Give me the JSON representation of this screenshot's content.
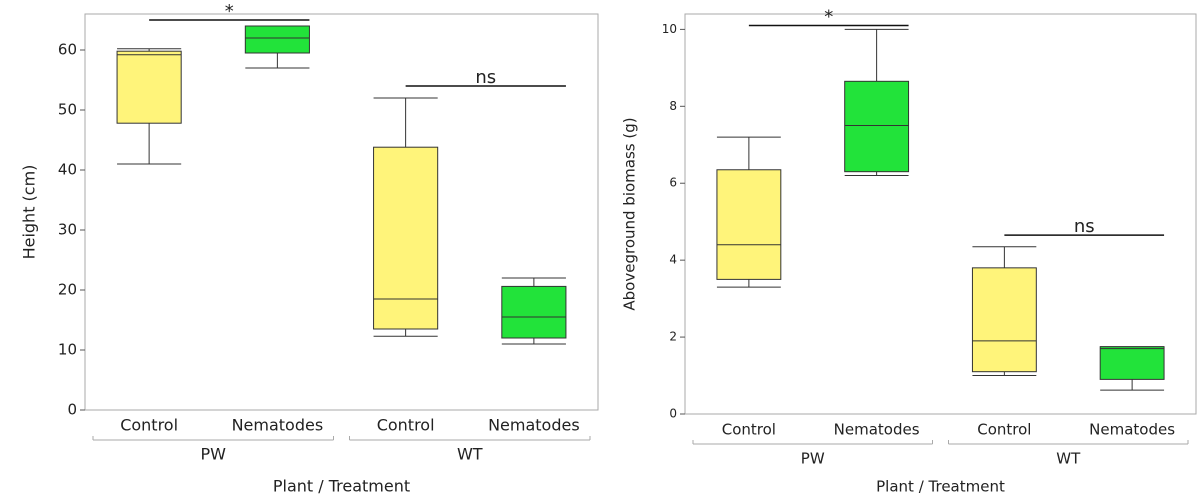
{
  "chart_data": [
    {
      "type": "box",
      "y_label": "Height (cm)",
      "x_label": "Plant / Treatment",
      "ylim": [
        0,
        66
      ],
      "yticks": [
        0,
        10,
        20,
        30,
        40,
        50,
        60
      ],
      "groups": [
        {
          "name": "PW",
          "annotation": {
            "label": "*",
            "y": 65
          },
          "boxes": [
            {
              "name": "Control",
              "color": "#fff47a",
              "min": 41,
              "q1": 47.8,
              "median": 59.2,
              "q3": 59.8,
              "max": 60.2
            },
            {
              "name": "Nematodes",
              "color": "#22e33a",
              "min": 57,
              "q1": 59.5,
              "median": 62,
              "q3": 64,
              "max": 64
            }
          ]
        },
        {
          "name": "WT",
          "annotation": {
            "label": "ns",
            "y": 54
          },
          "boxes": [
            {
              "name": "Control",
              "color": "#fff47a",
              "min": 12.3,
              "q1": 13.5,
              "median": 18.5,
              "q3": 43.8,
              "max": 52
            },
            {
              "name": "Nematodes",
              "color": "#22e33a",
              "min": 11,
              "q1": 12,
              "median": 15.5,
              "q3": 20.6,
              "max": 22
            }
          ]
        }
      ]
    },
    {
      "type": "box",
      "y_label": "Aboveground biomass (g)",
      "x_label": "Plant / Treatment",
      "ylim": [
        0,
        10.4
      ],
      "yticks": [
        0,
        2,
        4,
        6,
        8,
        10
      ],
      "groups": [
        {
          "name": "PW",
          "annotation": {
            "label": "*",
            "y": 10.1
          },
          "boxes": [
            {
              "name": "Control",
              "color": "#fff47a",
              "min": 3.3,
              "q1": 3.5,
              "median": 4.4,
              "q3": 6.35,
              "max": 7.2
            },
            {
              "name": "Nematodes",
              "color": "#22e33a",
              "min": 6.2,
              "q1": 6.3,
              "median": 7.5,
              "q3": 8.65,
              "max": 10
            }
          ]
        },
        {
          "name": "WT",
          "annotation": {
            "label": "ns",
            "y": 4.65
          },
          "boxes": [
            {
              "name": "Control",
              "color": "#fff47a",
              "min": 1.0,
              "q1": 1.1,
              "median": 1.9,
              "q3": 3.8,
              "max": 4.35
            },
            {
              "name": "Nematodes",
              "color": "#22e33a",
              "min": 0.62,
              "q1": 0.9,
              "median": 1.7,
              "q3": 1.75,
              "max": 1.75
            }
          ]
        }
      ]
    }
  ]
}
